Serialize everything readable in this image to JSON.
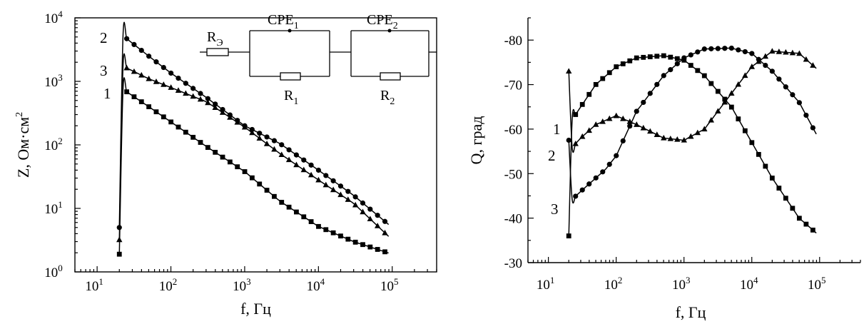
{
  "chart_data": [
    {
      "type": "scatter",
      "xlabel": "f, Гц",
      "ylabel": "Z, Ом·см",
      "ylabel_sup": "2",
      "xscale": "log",
      "yscale": "log",
      "xlim": [
        5,
        400000
      ],
      "ylim": [
        1,
        10000
      ],
      "xticks": [
        {
          "base": "10",
          "exp": "1"
        },
        {
          "base": "10",
          "exp": "2"
        },
        {
          "base": "10",
          "exp": "3"
        },
        {
          "base": "10",
          "exp": "4"
        },
        {
          "base": "10",
          "exp": "5"
        }
      ],
      "yticks": [
        {
          "base": "10",
          "exp": "0"
        },
        {
          "base": "10",
          "exp": "1"
        },
        {
          "base": "10",
          "exp": "2"
        },
        {
          "base": "10",
          "exp": "3"
        },
        {
          "base": "10",
          "exp": "4"
        }
      ],
      "series": [
        {
          "name": "1",
          "marker": "square",
          "x": [
            20,
            50,
            100,
            300,
            1000,
            3000,
            10000,
            30000,
            100000
          ],
          "y": [
            820,
            400,
            230,
            95,
            38,
            13,
            5.2,
            3.0,
            1.9
          ]
        },
        {
          "name": "2",
          "marker": "circle",
          "x": [
            20,
            50,
            100,
            300,
            1000,
            3000,
            10000,
            30000,
            100000
          ],
          "y": [
            5800,
            2500,
            1350,
            560,
            200,
            105,
            40,
            16,
            5.0
          ]
        },
        {
          "name": "3",
          "marker": "triangle",
          "x": [
            20,
            50,
            100,
            300,
            1000,
            3000,
            10000,
            30000,
            100000
          ],
          "y": [
            1850,
            1100,
            800,
            480,
            190,
            73,
            28,
            12,
            3.2
          ]
        }
      ],
      "grid": false,
      "inset": {
        "type": "equivalent-circuit",
        "elements": [
          {
            "name": "R",
            "sub": "Э"
          },
          {
            "name": "CPE",
            "sub": "1"
          },
          {
            "name": "R",
            "sub": "1"
          },
          {
            "name": "CPE",
            "sub": "2"
          },
          {
            "name": "R",
            "sub": "2"
          }
        ]
      }
    },
    {
      "type": "scatter",
      "xlabel": "f, Гц",
      "ylabel": "Q, град",
      "xscale": "log",
      "xlim": [
        5,
        400000
      ],
      "ylim": [
        -30,
        -85
      ],
      "xticks": [
        {
          "base": "10",
          "exp": "1"
        },
        {
          "base": "10",
          "exp": "2"
        },
        {
          "base": "10",
          "exp": "3"
        },
        {
          "base": "10",
          "exp": "4"
        },
        {
          "base": "10",
          "exp": "5"
        }
      ],
      "yticks": [
        "-80",
        "-70",
        "-60",
        "-50",
        "-40",
        "-30"
      ],
      "ytick_values": [
        -80,
        -70,
        -60,
        -50,
        -40,
        -30
      ],
      "series": [
        {
          "name": "1",
          "marker": "square",
          "x": [
            20,
            30,
            50,
            100,
            200,
            500,
            1000,
            2000,
            5000,
            10000,
            20000,
            50000,
            100000
          ],
          "y": [
            -61,
            -65,
            -70,
            -74,
            -76,
            -76.5,
            -75.5,
            -72,
            -65,
            -57,
            -49,
            -40,
            -36
          ]
        },
        {
          "name": "2",
          "marker": "triangle",
          "x": [
            20,
            30,
            50,
            100,
            200,
            500,
            1000,
            2000,
            5000,
            10000,
            20000,
            50000,
            100000
          ],
          "y": [
            -55,
            -58,
            -61,
            -63,
            -61,
            -58,
            -57.5,
            -60,
            -68,
            -74,
            -77.5,
            -77,
            -73
          ]
        },
        {
          "name": "3",
          "marker": "circle",
          "x": [
            20,
            30,
            50,
            70,
            100,
            200,
            500,
            1000,
            2000,
            5000,
            10000,
            20000,
            50000,
            100000
          ],
          "y": [
            -43.5,
            -46,
            -49,
            -51,
            -54,
            -64,
            -72,
            -76,
            -78,
            -78.2,
            -77,
            -73,
            -66,
            -57.5
          ]
        }
      ],
      "grid": false
    }
  ]
}
